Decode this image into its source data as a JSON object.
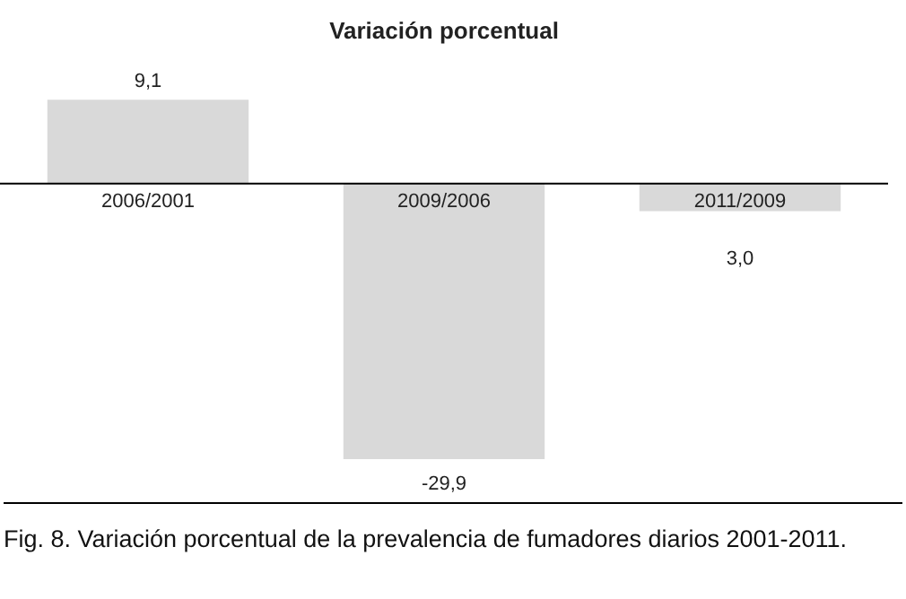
{
  "chart_data": {
    "type": "bar",
    "title": "Variación porcentual",
    "categories": [
      "2006/2001",
      "2009/2006",
      "2011/2009"
    ],
    "values": [
      9.1,
      -29.9,
      -3.0
    ],
    "value_labels": [
      "9,1",
      "-29,9",
      null
    ],
    "color": "#d9d9d9",
    "legend": false,
    "annotations": [
      {
        "text": "3,0",
        "x": "2011/2009",
        "y": -3.0
      },
      "Fig. 8. Variación porcentual de la prevalencia de fumadores diarios 2001-2011."
    ]
  }
}
